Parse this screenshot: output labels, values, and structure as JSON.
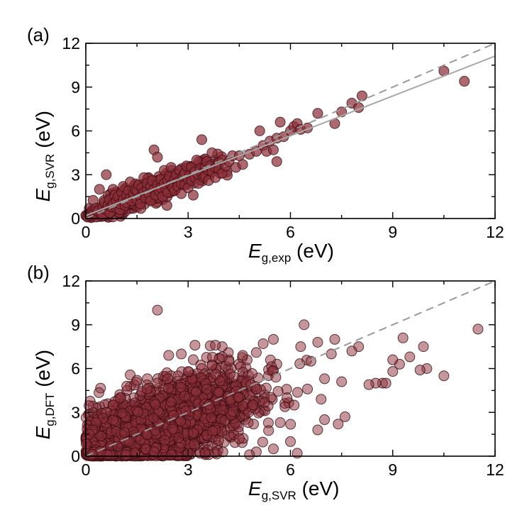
{
  "colors": {
    "marker_fill": "#8c2f39",
    "marker_stroke": "#3b0d12",
    "identity_line": "#999999",
    "fit_line": "#a8a8a8",
    "axes": "#000000",
    "background": "#ffffff"
  },
  "chart_data": [
    {
      "type": "scatter",
      "panel_label": "(a)",
      "xlabel": {
        "main": "E",
        "sub": "g,exp",
        "unit": " (eV)"
      },
      "ylabel": {
        "main": "E",
        "sub": "g,SVR",
        "unit": " (eV)"
      },
      "xlim": [
        0,
        12
      ],
      "ylim": [
        0,
        12
      ],
      "xticks": [
        "0",
        "3",
        "6",
        "9",
        "12"
      ],
      "yticks": [
        "0",
        "3",
        "6",
        "9",
        "12"
      ],
      "grid": false,
      "reference_line": {
        "style": "dashed",
        "slope": 1,
        "intercept": 0
      },
      "fit_line": {
        "style": "solid",
        "slope": 0.91,
        "intercept": 0.2
      },
      "series": [
        {
          "points": [
            [
              0.05,
              0.1
            ],
            [
              0.1,
              0.3
            ],
            [
              0.15,
              0.2
            ],
            [
              0.2,
              0.5
            ],
            [
              0.25,
              0.4
            ],
            [
              0.3,
              0.1
            ],
            [
              0.3,
              0.7
            ],
            [
              0.35,
              0.5
            ],
            [
              0.4,
              2.0
            ],
            [
              0.45,
              0.3
            ],
            [
              0.5,
              0.8
            ],
            [
              0.5,
              0.2
            ],
            [
              0.55,
              1.1
            ],
            [
              0.6,
              0.6
            ],
            [
              0.6,
              3.0
            ],
            [
              0.65,
              0.9
            ],
            [
              0.7,
              1.3
            ],
            [
              0.7,
              0.4
            ],
            [
              0.75,
              0.8
            ],
            [
              0.8,
              2.0
            ],
            [
              0.8,
              1.0
            ],
            [
              0.85,
              1.6
            ],
            [
              0.9,
              0.7
            ],
            [
              0.9,
              1.2
            ],
            [
              0.95,
              1.5
            ],
            [
              1.0,
              0.6
            ],
            [
              1.0,
              1.0
            ],
            [
              1.05,
              1.8
            ],
            [
              1.1,
              1.3
            ],
            [
              1.1,
              2.2
            ],
            [
              1.15,
              0.9
            ],
            [
              1.2,
              1.6
            ],
            [
              1.2,
              1.1
            ],
            [
              1.25,
              1.9
            ],
            [
              1.3,
              1.4
            ],
            [
              1.3,
              2.5
            ],
            [
              1.35,
              1.2
            ],
            [
              1.4,
              1.7
            ],
            [
              1.45,
              2.0
            ],
            [
              1.5,
              1.3
            ],
            [
              1.5,
              1.9
            ],
            [
              1.55,
              2.3
            ],
            [
              1.6,
              1.5
            ],
            [
              1.6,
              1.0
            ],
            [
              1.65,
              2.1
            ],
            [
              1.7,
              1.8
            ],
            [
              1.7,
              2.8
            ],
            [
              1.75,
              1.4
            ],
            [
              1.8,
              2.0
            ],
            [
              1.8,
              2.4
            ],
            [
              1.85,
              1.7
            ],
            [
              1.9,
              2.2
            ],
            [
              1.9,
              1.2
            ],
            [
              1.95,
              2.6
            ],
            [
              2.0,
              4.7
            ],
            [
              2.0,
              2.0
            ],
            [
              2.05,
              1.6
            ],
            [
              2.1,
              2.3
            ],
            [
              2.1,
              4.2
            ],
            [
              2.15,
              1.9
            ],
            [
              2.2,
              2.7
            ],
            [
              2.2,
              2.1
            ],
            [
              2.25,
              1.5
            ],
            [
              2.3,
              2.4
            ],
            [
              2.3,
              3.3
            ],
            [
              2.35,
              2.0
            ],
            [
              2.4,
              2.6
            ],
            [
              2.4,
              1.8
            ],
            [
              2.45,
              2.9
            ],
            [
              2.5,
              2.3
            ],
            [
              2.5,
              3.5
            ],
            [
              2.55,
              2.1
            ],
            [
              2.6,
              2.7
            ],
            [
              2.6,
              1.9
            ],
            [
              2.65,
              3.0
            ],
            [
              2.7,
              2.5
            ],
            [
              2.7,
              2.2
            ],
            [
              2.75,
              3.3
            ],
            [
              2.8,
              2.4
            ],
            [
              2.8,
              1.7
            ],
            [
              2.85,
              2.9
            ],
            [
              2.9,
              3.1
            ],
            [
              2.9,
              2.3
            ],
            [
              2.95,
              3.6
            ],
            [
              3.0,
              2.7
            ],
            [
              3.0,
              2.1
            ],
            [
              3.05,
              3.0
            ],
            [
              3.1,
              3.5
            ],
            [
              3.1,
              2.6
            ],
            [
              3.15,
              1.6
            ],
            [
              3.2,
              3.2
            ],
            [
              3.2,
              2.8
            ],
            [
              3.25,
              4.0
            ],
            [
              3.3,
              3.0
            ],
            [
              3.3,
              2.4
            ],
            [
              3.35,
              3.4
            ],
            [
              3.4,
              3.1
            ],
            [
              3.4,
              5.4
            ],
            [
              3.45,
              2.8
            ],
            [
              3.5,
              3.5
            ],
            [
              3.5,
              2.9
            ],
            [
              3.55,
              3.9
            ],
            [
              3.6,
              3.3
            ],
            [
              3.6,
              2.6
            ],
            [
              3.65,
              3.6
            ],
            [
              3.7,
              3.2
            ],
            [
              3.7,
              4.5
            ],
            [
              3.8,
              3.5
            ],
            [
              3.8,
              2.8
            ],
            [
              3.9,
              3.8
            ],
            [
              3.9,
              3.4
            ],
            [
              4.0,
              4.0
            ],
            [
              4.0,
              3.1
            ],
            [
              4.1,
              3.6
            ],
            [
              4.2,
              3.9
            ],
            [
              4.3,
              4.3
            ],
            [
              4.4,
              3.5
            ],
            [
              4.5,
              4.3
            ],
            [
              4.6,
              3.7
            ],
            [
              4.8,
              4.4
            ],
            [
              5.0,
              4.6
            ],
            [
              5.1,
              6.0
            ],
            [
              5.2,
              5.0
            ],
            [
              5.3,
              4.6
            ],
            [
              5.4,
              5.3
            ],
            [
              5.5,
              4.7
            ],
            [
              5.6,
              5.5
            ],
            [
              5.6,
              3.9
            ],
            [
              5.7,
              6.6
            ],
            [
              5.8,
              5.6
            ],
            [
              6.0,
              6.0
            ],
            [
              6.1,
              6.3
            ],
            [
              6.2,
              6.5
            ],
            [
              6.3,
              6.1
            ],
            [
              6.5,
              6.2
            ],
            [
              6.8,
              7.2
            ],
            [
              7.3,
              6.5
            ],
            [
              7.5,
              7.3
            ],
            [
              7.8,
              7.9
            ],
            [
              8.0,
              7.6
            ],
            [
              8.1,
              8.4
            ],
            [
              10.5,
              10.1
            ],
            [
              11.1,
              9.4
            ]
          ]
        }
      ]
    },
    {
      "type": "scatter",
      "panel_label": "(b)",
      "xlabel": {
        "main": "E",
        "sub": "g,SVR",
        "unit": " (eV)"
      },
      "ylabel": {
        "main": "E",
        "sub": "g,DFT",
        "unit": " (eV)"
      },
      "xlim": [
        0,
        12
      ],
      "ylim": [
        0,
        12
      ],
      "xticks": [
        "0",
        "3",
        "6",
        "9",
        "12"
      ],
      "yticks": [
        "0",
        "3",
        "6",
        "9",
        "12"
      ],
      "grid": false,
      "reference_line": {
        "style": "dashed",
        "slope": 1,
        "intercept": 0
      },
      "series": [
        {
          "points": [
            [
              2.1,
              10.0
            ],
            [
              11.5,
              8.7
            ],
            [
              10.5,
              5.5
            ],
            [
              10.0,
              6.0
            ],
            [
              9.9,
              7.5
            ],
            [
              9.5,
              6.8
            ],
            [
              9.3,
              8.1
            ],
            [
              9.2,
              6.3
            ],
            [
              9.0,
              6.6
            ],
            [
              8.7,
              5.0
            ],
            [
              8.5,
              5.0
            ],
            [
              8.0,
              7.5
            ],
            [
              7.8,
              7.2
            ],
            [
              7.5,
              5.1
            ],
            [
              7.3,
              8.0
            ],
            [
              7.2,
              7.0
            ],
            [
              7.0,
              5.3
            ],
            [
              6.8,
              7.8
            ],
            [
              6.6,
              6.5
            ],
            [
              6.5,
              4.6
            ],
            [
              6.4,
              9.0
            ],
            [
              6.3,
              7.5
            ],
            [
              6.2,
              0.2
            ],
            [
              6.0,
              1.0
            ],
            [
              5.9,
              4.0
            ],
            [
              5.7,
              2.3
            ],
            [
              5.5,
              8.0
            ],
            [
              5.5,
              0.5
            ],
            [
              5.0,
              0.3
            ],
            [
              4.9,
              3.5
            ],
            [
              4.8,
              0.1
            ],
            [
              4.5,
              1.2
            ],
            [
              4.0,
              7.5
            ],
            [
              3.8,
              7.6
            ],
            [
              3.5,
              0.2
            ],
            [
              3.2,
              7.6
            ],
            [
              3.0,
              0.2
            ],
            [
              2.8,
              7.0
            ],
            [
              2.5,
              0.1
            ],
            [
              2.0,
              0.3
            ],
            [
              1.5,
              5.2
            ],
            [
              1.2,
              4.8
            ],
            [
              1.0,
              4.0
            ],
            [
              0.8,
              3.5
            ],
            [
              0.6,
              3.0
            ],
            [
              0.5,
              2.6
            ],
            [
              0.3,
              2.3
            ],
            [
              0.2,
              1.8
            ],
            [
              0.1,
              1.5
            ],
            [
              7.6,
              2.7
            ],
            [
              7.4,
              2.2
            ],
            [
              6.9,
              3.9
            ],
            [
              7.0,
              2.5
            ],
            [
              6.8,
              1.8
            ],
            [
              8.3,
              4.9
            ],
            [
              8.8,
              5.0
            ],
            [
              9.0,
              5.8
            ],
            [
              9.8,
              5.9
            ],
            [
              5.2,
              7.7
            ],
            [
              5.0,
              7.1
            ],
            [
              4.6,
              6.9
            ],
            [
              4.2,
              6.5
            ],
            [
              4.0,
              6.8
            ],
            [
              3.7,
              6.2
            ],
            [
              3.4,
              6.0
            ],
            [
              3.0,
              5.8
            ],
            [
              2.7,
              5.5
            ],
            [
              2.4,
              5.3
            ],
            [
              2.1,
              5.0
            ],
            [
              1.8,
              4.6
            ]
          ]
        }
      ],
      "dense_cloud": {
        "description": "thousands of overlapping points",
        "center_line_slope": 0.85
      }
    }
  ]
}
